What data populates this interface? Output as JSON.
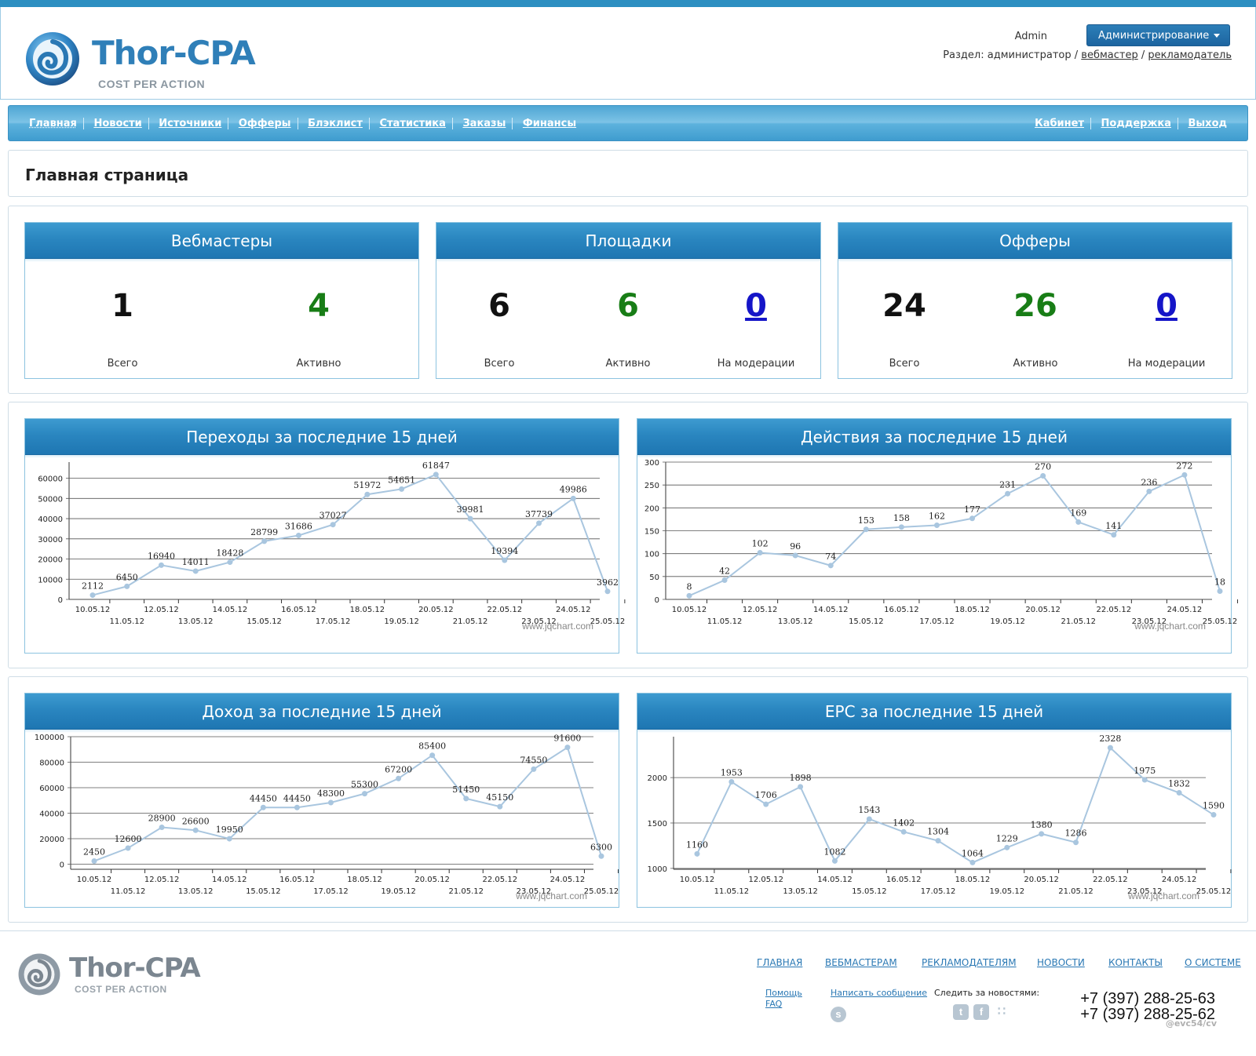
{
  "brand": {
    "name": "Thor-CPA",
    "tagline": "COST PER ACTION"
  },
  "header": {
    "user": "Admin",
    "role_button": "Администрирование",
    "section_label": "Раздел:",
    "section_current": "администратор",
    "section_links": [
      "вебмастер",
      "рекламодатель"
    ]
  },
  "nav": {
    "left": [
      "Главная",
      "Новости",
      "Источники",
      "Офферы",
      "Блэклист",
      "Статистика",
      "Заказы",
      "Финансы"
    ],
    "right": [
      "Кабинет",
      "Поддержка",
      "Выход"
    ]
  },
  "page_title": "Главная страница",
  "stats": {
    "webmasters": {
      "title": "Вебмастеры",
      "total": "1",
      "active": "4",
      "total_label": "Всего",
      "active_label": "Активно"
    },
    "sites": {
      "title": "Площадки",
      "total": "6",
      "active": "6",
      "moderation": "0",
      "total_label": "Всего",
      "active_label": "Активно",
      "moderation_label": "На модерации"
    },
    "offers": {
      "title": "Офферы",
      "total": "24",
      "active": "26",
      "moderation": "0",
      "total_label": "Всего",
      "active_label": "Активно",
      "moderation_label": "На модерации"
    }
  },
  "chart_watermark": "www.jqchart.com",
  "chart_colors": {
    "line": "#a9c6df",
    "point": "#a9c6df",
    "grid": "#555555"
  },
  "chart_data": [
    {
      "type": "line",
      "title": "Переходы за последние 15 дней",
      "categories": [
        "10.05.12",
        "11.05.12",
        "12.05.12",
        "13.05.12",
        "14.05.12",
        "15.05.12",
        "16.05.12",
        "17.05.12",
        "18.05.12",
        "19.05.12",
        "20.05.12",
        "21.05.12",
        "22.05.12",
        "23.05.12",
        "24.05.12",
        "25.05.12"
      ],
      "values": [
        2112,
        6450,
        16940,
        14011,
        18428,
        28799,
        31686,
        37027,
        51972,
        54651,
        61847,
        39981,
        19394,
        37739,
        49986,
        3962
      ],
      "yticks": [
        0,
        10000,
        20000,
        30000,
        40000,
        50000,
        60000
      ],
      "ylim": [
        0,
        68000
      ]
    },
    {
      "type": "line",
      "title": "Действия за последние 15 дней",
      "categories": [
        "10.05.12",
        "11.05.12",
        "12.05.12",
        "13.05.12",
        "14.05.12",
        "15.05.12",
        "16.05.12",
        "17.05.12",
        "18.05.12",
        "19.05.12",
        "20.05.12",
        "21.05.12",
        "22.05.12",
        "23.05.12",
        "24.05.12",
        "25.05.12"
      ],
      "values": [
        8,
        42,
        102,
        96,
        74,
        153,
        158,
        162,
        177,
        231,
        270,
        169,
        141,
        236,
        272,
        18
      ],
      "yticks": [
        0,
        50,
        100,
        150,
        200,
        250,
        300
      ],
      "ylim": [
        0,
        300
      ]
    },
    {
      "type": "line",
      "title": "Доход за последние 15 дней",
      "categories": [
        "10.05.12",
        "11.05.12",
        "12.05.12",
        "13.05.12",
        "14.05.12",
        "15.05.12",
        "16.05.12",
        "17.05.12",
        "18.05.12",
        "19.05.12",
        "20.05.12",
        "21.05.12",
        "22.05.12",
        "23.05.12",
        "24.05.12",
        "25.05.12"
      ],
      "values": [
        2450,
        12600,
        28900,
        26600,
        19950,
        44450,
        44450,
        48300,
        55300,
        67200,
        85400,
        51450,
        45150,
        74550,
        91600,
        6300
      ],
      "yticks": [
        0,
        20000,
        40000,
        60000,
        80000,
        100000
      ],
      "ylim": [
        -4000,
        100000
      ]
    },
    {
      "type": "line",
      "title": "EPC за последние 15 дней",
      "categories": [
        "10.05.12",
        "11.05.12",
        "12.05.12",
        "13.05.12",
        "14.05.12",
        "15.05.12",
        "16.05.12",
        "17.05.12",
        "18.05.12",
        "19.05.12",
        "20.05.12",
        "21.05.12",
        "22.05.12",
        "23.05.12",
        "24.05.12",
        "25.05.12"
      ],
      "values": [
        1160,
        1953,
        1706,
        1898,
        1082,
        1543,
        1402,
        1304,
        1064,
        1229,
        1380,
        1286,
        2328,
        1975,
        1832,
        1590
      ],
      "yticks": [
        1000,
        1500,
        2000
      ],
      "ylim": [
        990,
        2450
      ]
    }
  ],
  "footer": {
    "nav": [
      "ГЛАВНАЯ",
      "ВЕБМАСТЕРАМ",
      "РЕКЛАМОДАТЕЛЯМ",
      "НОВОСТИ",
      "КОНТАКТЫ",
      "О СИСТЕМЕ"
    ],
    "help": "Помощь",
    "faq": "FAQ",
    "write": "Написать сообщение",
    "follow": "Следить за новостями:",
    "phones": [
      "+7 (397) 288-25-63",
      "+7 (397) 288-25-62"
    ],
    "credit": "@evc54/cv"
  }
}
